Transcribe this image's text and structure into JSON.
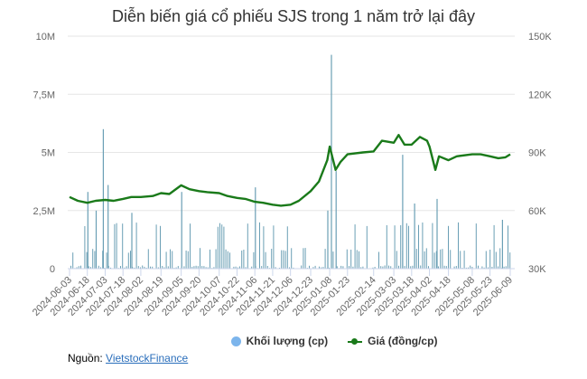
{
  "title": "Diễn biến giá cổ phiếu SJS trong 1 năm trở lại đây",
  "legend": {
    "volume_label": "Khối lượng (cp)",
    "price_label": "Giá (đồng/cp)"
  },
  "source": {
    "prefix": "Nguồn:",
    "link_text": "VietstockFinance"
  },
  "colors": {
    "volume": "#7cb5ec",
    "volume_bar": "#6a9fb5",
    "price": "#1a7a1a",
    "grid": "#e6e6e6",
    "link": "#2a6ebb"
  },
  "chart_data": {
    "type": "bar+line",
    "title": "Diễn biến giá cổ phiếu SJS trong 1 năm trở lại đây",
    "xlabel": "",
    "y_left_label": "Khối lượng (cp)",
    "y_right_label": "Giá (đồng/cp)",
    "y_left_ticks": [
      "0",
      "2,5M",
      "5M",
      "7,5M",
      "10M"
    ],
    "y_right_ticks": [
      "30K",
      "60K",
      "90K",
      "120K",
      "150K"
    ],
    "y_left_range": [
      0,
      10000000
    ],
    "y_right_range": [
      30000,
      150000
    ],
    "grid": true,
    "legend_position": "bottom",
    "x_tick_labels": [
      "2024-06-03",
      "2024-06-18",
      "2024-07-03",
      "2024-07-18",
      "2024-08-02",
      "2024-08-19",
      "2024-09-05",
      "2024-09-20",
      "2024-10-07",
      "2024-10-22",
      "2024-11-06",
      "2024-11-21",
      "2024-12-06",
      "2024-12-23",
      "2025-01-08",
      "2025-01-23",
      "2025-02-14",
      "2025-03-03",
      "2025-03-18",
      "2025-04-02",
      "2025-04-18",
      "2025-05-08",
      "2025-05-23",
      "2025-06-09"
    ],
    "series": [
      {
        "name": "Giá (đồng/cp)",
        "type": "line",
        "axis": "right",
        "x": [
          "2024-06-03",
          "2024-06-10",
          "2024-06-18",
          "2024-06-25",
          "2024-07-03",
          "2024-07-10",
          "2024-07-18",
          "2024-07-25",
          "2024-08-02",
          "2024-08-12",
          "2024-08-19",
          "2024-08-26",
          "2024-09-05",
          "2024-09-12",
          "2024-09-20",
          "2024-09-27",
          "2024-10-07",
          "2024-10-14",
          "2024-10-22",
          "2024-10-29",
          "2024-11-06",
          "2024-11-13",
          "2024-11-21",
          "2024-11-28",
          "2024-12-06",
          "2024-12-13",
          "2024-12-23",
          "2024-12-30",
          "2025-01-06",
          "2025-01-08",
          "2025-01-13",
          "2025-01-17",
          "2025-01-23",
          "2025-02-05",
          "2025-02-14",
          "2025-02-21",
          "2025-03-03",
          "2025-03-07",
          "2025-03-12",
          "2025-03-18",
          "2025-03-25",
          "2025-03-31",
          "2025-04-02",
          "2025-04-07",
          "2025-04-10",
          "2025-04-18",
          "2025-04-25",
          "2025-05-08",
          "2025-05-15",
          "2025-05-23",
          "2025-05-30",
          "2025-06-05",
          "2025-06-09"
        ],
        "values": [
          67000,
          65000,
          64000,
          65000,
          65500,
          65000,
          66000,
          67000,
          67000,
          67500,
          69000,
          68500,
          73000,
          71000,
          70000,
          69500,
          69000,
          67500,
          66500,
          66000,
          64500,
          64000,
          63000,
          62500,
          63000,
          65000,
          70000,
          75000,
          86000,
          93000,
          81000,
          85000,
          89000,
          90000,
          90500,
          96000,
          95000,
          99000,
          94000,
          94000,
          98000,
          96000,
          93000,
          81000,
          88000,
          86000,
          88000,
          89000,
          89000,
          88000,
          87000,
          87500,
          89000
        ]
      },
      {
        "name": "Khối lượng (cp)",
        "type": "bar",
        "axis": "left",
        "x_index_note": "approximate daily bars, notable peaks",
        "peaks": [
          {
            "date": "2024-06-18",
            "value": 3300000
          },
          {
            "date": "2024-06-25",
            "value": 2500000
          },
          {
            "date": "2024-07-01",
            "value": 6000000
          },
          {
            "date": "2024-07-05",
            "value": 3600000
          },
          {
            "date": "2024-07-25",
            "value": 2400000
          },
          {
            "date": "2024-09-05",
            "value": 3300000
          },
          {
            "date": "2024-11-06",
            "value": 3500000
          },
          {
            "date": "2025-01-06",
            "value": 2500000
          },
          {
            "date": "2025-01-09",
            "value": 9200000
          },
          {
            "date": "2025-01-13",
            "value": 4200000
          },
          {
            "date": "2025-03-10",
            "value": 4900000
          },
          {
            "date": "2025-03-20",
            "value": 2800000
          },
          {
            "date": "2025-04-08",
            "value": 3000000
          },
          {
            "date": "2025-06-02",
            "value": 2100000
          }
        ]
      }
    ]
  }
}
